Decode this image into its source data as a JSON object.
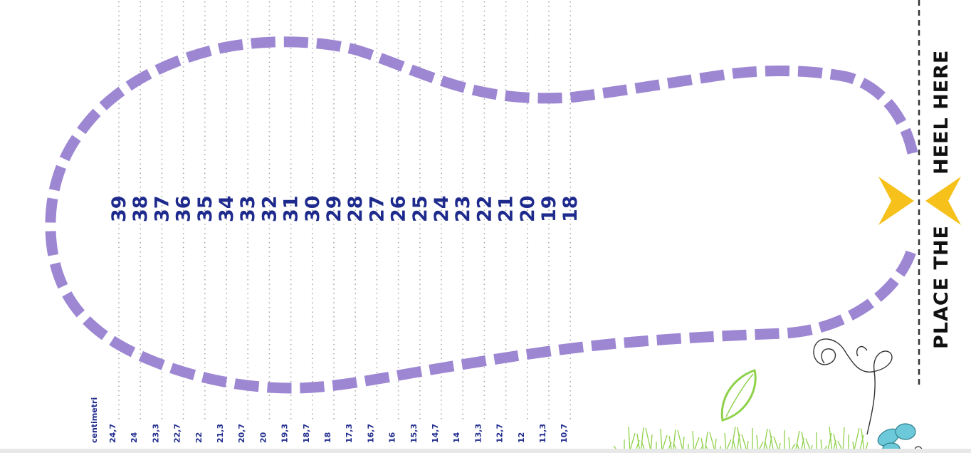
{
  "sizes": [
    "39",
    "38",
    "37",
    "36",
    "35",
    "34",
    "33",
    "32",
    "31",
    "30",
    "29",
    "28",
    "27",
    "26",
    "25",
    "24",
    "23",
    "22",
    "21",
    "20",
    "19",
    "18"
  ],
  "centimeters": [
    "24,7",
    "24",
    "23,3",
    "22,7",
    "22",
    "21,3",
    "20,7",
    "20",
    "19,3",
    "18,7",
    "18",
    "17,3",
    "16,7",
    "16",
    "15,3",
    "14,7",
    "14",
    "13,3",
    "12,7",
    "12",
    "11,3",
    "10,7"
  ],
  "cm_unit_label": "centimetri",
  "heel_instruction": {
    "part1": "PLACE THE",
    "part2": "HEEL HERE"
  },
  "colors": {
    "outline": "#9d87d2",
    "size_text": "#1e2a8c",
    "cm_text": "#1e2a8c",
    "arrow": "#f5c11a",
    "guide_dots": "#a9a9a9",
    "heel_line": "#333333",
    "grass": "#8fd14a",
    "butterfly": "#6cc9d9"
  },
  "decorations": [
    "butterfly-doodle",
    "grass-doodle",
    "swirl-doodle"
  ]
}
